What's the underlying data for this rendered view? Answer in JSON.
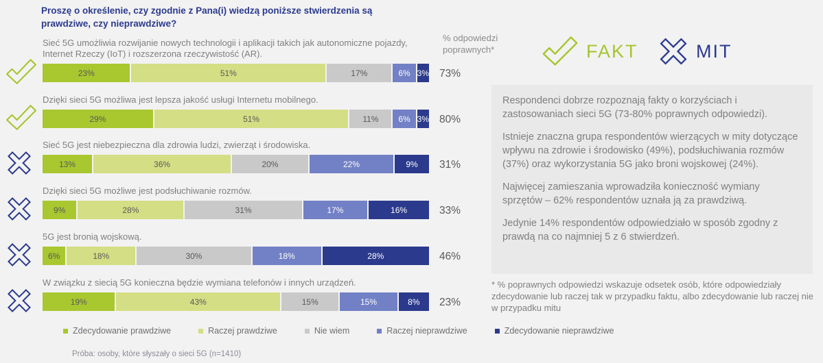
{
  "title": {
    "line1": "Proszę o określenie, czy zgodnie z Pana(i) wiedzą poniższe stwierdzenia są",
    "line2": "prawdziwe, czy nieprawdziwe?"
  },
  "correct_header": "% odpowiedzi poprawnych*",
  "fakt_label": "FAKT",
  "mit_label": "MIT",
  "colors": {
    "fakt_green": "#a6c52d",
    "mit_navy": "#2b3a8c",
    "title_navy": "#2b3a8c",
    "panel_bg": "#e9e9ea",
    "background": "#f2f2f3",
    "segment_colors": [
      "#a9c72f",
      "#d4de84",
      "#c9c9c9",
      "#7280c5",
      "#2b3a8c"
    ],
    "segment_label_dark": "#595959",
    "segment_label_light": "#ffffff"
  },
  "chart_data": {
    "type": "bar",
    "orientation": "horizontal",
    "stacked": true,
    "legend": [
      "Zdecydowanie prawdziwe",
      "Raczej prawdziwe",
      "Nie wiem",
      "Raczej nieprawdziwe",
      "Zdecydowanie nieprawdziwe"
    ],
    "legend_position": "bottom",
    "value_unit": "%",
    "rows": [
      {
        "statement": "Sieć 5G umożliwia rozwijanie nowych technologii i aplikacji takich jak autonomiczne pojazdy, Internet Rzeczy (IoT) i rozszerzona rzeczywistość (AR).",
        "icon": "check",
        "values": [
          23,
          51,
          17,
          6,
          3
        ],
        "correct": "73%"
      },
      {
        "statement": "Dzięki sieci 5G możliwa jest lepsza jakość usługi Internetu mobilnego.",
        "icon": "check",
        "values": [
          29,
          51,
          11,
          6,
          3
        ],
        "correct": "80%"
      },
      {
        "statement": "Sieć 5G jest niebezpieczna dla zdrowia ludzi, zwierząt i środowiska.",
        "icon": "x",
        "values": [
          13,
          36,
          20,
          22,
          9
        ],
        "correct": "31%"
      },
      {
        "statement": "Dzięki sieci 5G możliwe jest podsłuchiwanie rozmów.",
        "icon": "x",
        "values": [
          9,
          28,
          31,
          17,
          16
        ],
        "correct": "33%"
      },
      {
        "statement": "5G jest bronią wojskową.",
        "icon": "x",
        "values": [
          6,
          18,
          30,
          18,
          28
        ],
        "correct": "46%"
      },
      {
        "statement": "W związku z siecią 5G konieczna będzie wymiana telefonów i innych urządzeń.",
        "icon": "x",
        "values": [
          19,
          43,
          15,
          15,
          8
        ],
        "correct": "23%"
      }
    ]
  },
  "panel": {
    "paragraphs": [
      "Respondenci dobrze rozpoznają fakty o korzyściach i zastosowaniach sieci 5G (73-80% poprawnych odpowiedzi).",
      "Istnieje znaczna grupa respondentów wierzących w mity dotyczące wpływu na zdrowie i środowisko (49%), podsłuchiwania rozmów (37%) oraz wykorzystania 5G jako broni wojskowej (24%).",
      "Najwięcej zamieszania wprowadziła konieczność wymiany sprzętów – 62% respondentów uznała ją za prawdziwą.",
      "Jedynie 14% respondentów odpowiedziało w sposób zgodny z prawdą na co najmniej 5 z 6 stwierdzeń."
    ]
  },
  "footnote": "* % poprawnych odpowiedzi wskazuje odsetek osób, które odpowiedziały zdecydowanie lub raczej tak w przypadku faktu, albo zdecydowanie lub raczej nie w przypadku mitu",
  "sample_note": "Próba: osoby, które słyszały o sieci 5G (n=1410)"
}
